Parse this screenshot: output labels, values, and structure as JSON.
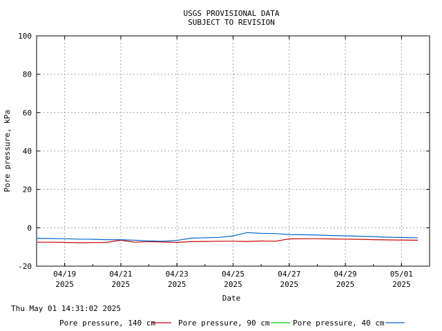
{
  "chart_data": {
    "type": "line",
    "title": [
      "USGS PROVISIONAL DATA",
      "SUBJECT TO REVISION"
    ],
    "xlabel": "Date",
    "ylabel": "Pore pressure, kPa",
    "ylim": [
      -20,
      100
    ],
    "yticks": [
      -20,
      0,
      20,
      40,
      60,
      80,
      100
    ],
    "xlim": [
      "2025-04-18 00:00",
      "2025-05-01 24:00"
    ],
    "xticks": [
      {
        "date": "2025-04-19",
        "line1": "04/19",
        "line2": "2025"
      },
      {
        "date": "2025-04-21",
        "line1": "04/21",
        "line2": "2025"
      },
      {
        "date": "2025-04-23",
        "line1": "04/23",
        "line2": "2025"
      },
      {
        "date": "2025-04-25",
        "line1": "04/25",
        "line2": "2025"
      },
      {
        "date": "2025-04-27",
        "line1": "04/27",
        "line2": "2025"
      },
      {
        "date": "2025-04-29",
        "line1": "04/29",
        "line2": "2025"
      },
      {
        "date": "2025-05-01",
        "line1": "05/01",
        "line2": "2025"
      }
    ],
    "grid": true,
    "legend_position": "bottom",
    "series": [
      {
        "name": "Pore pressure, 140 cm",
        "color": "#cc0000",
        "x": [
          "2025-04-18 00:00",
          "2025-04-18 12:00",
          "2025-04-19 00:00",
          "2025-04-19 12:00",
          "2025-04-20 00:00",
          "2025-04-20 12:00",
          "2025-04-21 00:00",
          "2025-04-21 12:00",
          "2025-04-22 00:00",
          "2025-04-22 12:00",
          "2025-04-23 00:00",
          "2025-04-23 12:00",
          "2025-04-24 00:00",
          "2025-04-24 12:00",
          "2025-04-25 00:00",
          "2025-04-25 12:00",
          "2025-04-26 00:00",
          "2025-04-26 12:00",
          "2025-04-27 00:00",
          "2025-04-27 12:00",
          "2025-04-28 00:00",
          "2025-04-28 12:00",
          "2025-04-29 00:00",
          "2025-04-29 12:00",
          "2025-04-30 00:00",
          "2025-04-30 12:00",
          "2025-05-01 00:00",
          "2025-05-01 14:00"
        ],
        "y": [
          -7.5,
          -7.5,
          -7.6,
          -7.8,
          -7.7,
          -7.6,
          -6.5,
          -7.5,
          -7.2,
          -7.4,
          -7.6,
          -7.2,
          -7.1,
          -7.0,
          -7.0,
          -7.1,
          -6.9,
          -7.0,
          -5.8,
          -5.7,
          -5.7,
          -5.8,
          -5.9,
          -6.0,
          -6.2,
          -6.3,
          -6.4,
          -6.5
        ]
      },
      {
        "name": "Pore pressure, 90 cm",
        "color": "#00cc00",
        "x": [],
        "y": []
      },
      {
        "name": "Pore pressure, 40 cm",
        "color": "#0066cc",
        "x": [
          "2025-04-18 00:00",
          "2025-04-18 12:00",
          "2025-04-19 00:00",
          "2025-04-19 12:00",
          "2025-04-20 00:00",
          "2025-04-20 12:00",
          "2025-04-21 00:00",
          "2025-04-21 12:00",
          "2025-04-22 00:00",
          "2025-04-22 12:00",
          "2025-04-23 00:00",
          "2025-04-23 12:00",
          "2025-04-24 00:00",
          "2025-04-24 12:00",
          "2025-04-25 00:00",
          "2025-04-25 12:00",
          "2025-04-26 00:00",
          "2025-04-26 12:00",
          "2025-04-27 00:00",
          "2025-04-27 12:00",
          "2025-04-28 00:00",
          "2025-04-28 12:00",
          "2025-04-29 00:00",
          "2025-04-29 12:00",
          "2025-04-30 00:00",
          "2025-04-30 12:00",
          "2025-05-01 00:00",
          "2025-05-01 14:00"
        ],
        "y": [
          -5.5,
          -5.6,
          -5.7,
          -5.9,
          -6.0,
          -6.2,
          -6.2,
          -6.5,
          -6.8,
          -7.0,
          -6.6,
          -5.4,
          -5.2,
          -5.0,
          -4.2,
          -2.5,
          -2.9,
          -3.0,
          -3.5,
          -3.6,
          -3.8,
          -4.0,
          -4.2,
          -4.4,
          -4.6,
          -4.9,
          -5.1,
          -5.2
        ]
      }
    ]
  },
  "footer": {
    "timestamp": "Thu May 01 14:31:02 2025"
  }
}
